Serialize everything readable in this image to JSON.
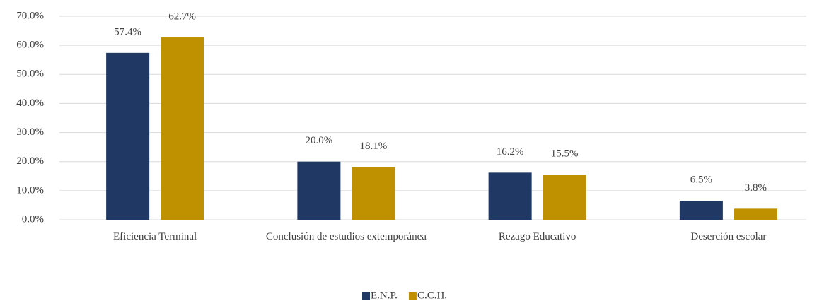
{
  "chart_data": {
    "type": "bar",
    "categories": [
      "Eficiencia Terminal",
      "Conclusión de estudios extemporánea",
      "Rezago Educativo",
      "Deserción escolar"
    ],
    "series": [
      {
        "name": "E.N.P.",
        "color": "#1f3864",
        "values": [
          57.4,
          20.0,
          16.2,
          6.5
        ],
        "value_labels": [
          "57.4%",
          "20.0%",
          "16.2%",
          "6.5%"
        ]
      },
      {
        "name": "C.C.H.",
        "color": "#bf9000",
        "values": [
          62.7,
          18.1,
          15.5,
          3.8
        ],
        "value_labels": [
          "62.7%",
          "18.1%",
          "15.5%",
          "3.8%"
        ]
      }
    ],
    "ylim": [
      0,
      70
    ],
    "yticks": [
      {
        "value": 0,
        "label": "0.0%"
      },
      {
        "value": 10,
        "label": "10.0%"
      },
      {
        "value": 20,
        "label": "20.0%"
      },
      {
        "value": 30,
        "label": "30.0%"
      },
      {
        "value": 40,
        "label": "40.0%"
      },
      {
        "value": 50,
        "label": "50.0%"
      },
      {
        "value": 60,
        "label": "60.0%"
      },
      {
        "value": 70,
        "label": "70.0%"
      }
    ],
    "grid": true,
    "legend": "bottom"
  }
}
